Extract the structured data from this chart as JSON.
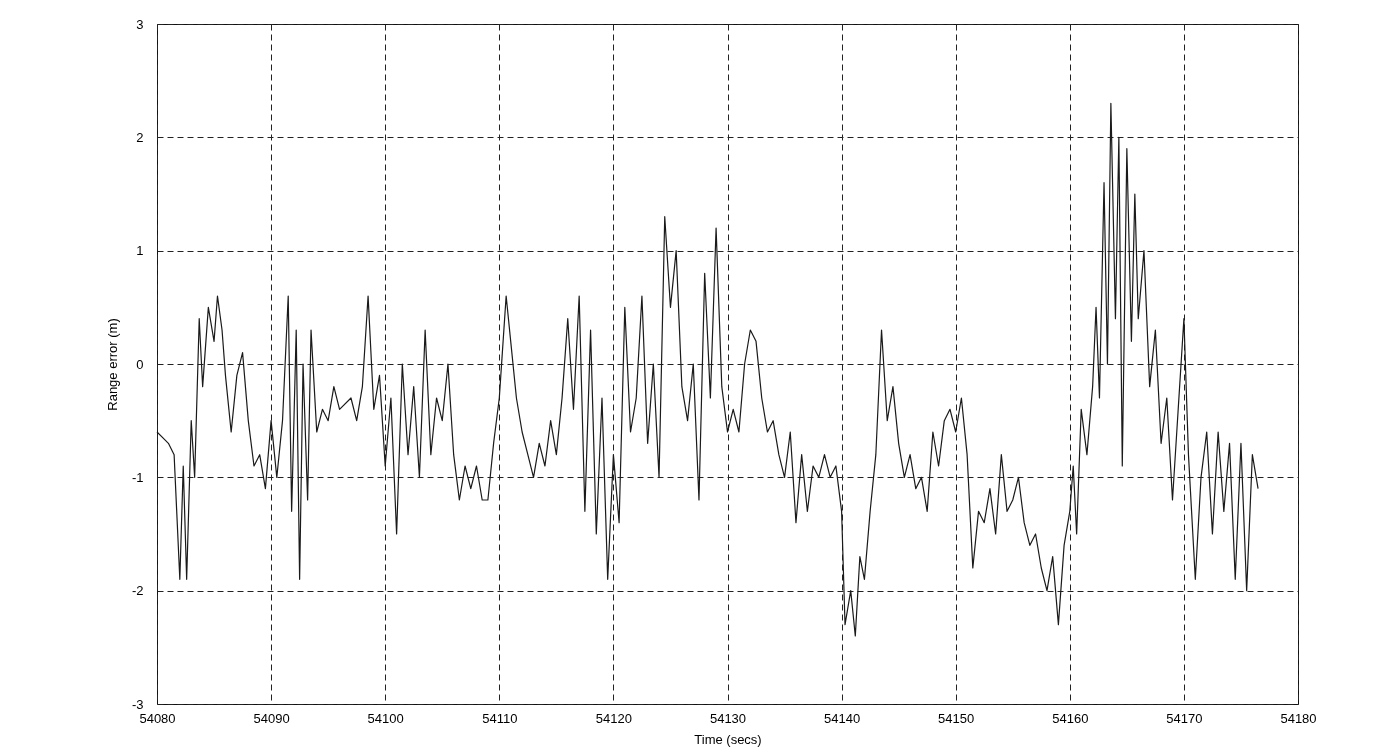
{
  "chart_data": {
    "type": "line",
    "xlabel": "Time (secs)",
    "ylabel": "Range error (m)",
    "xlim": [
      54080,
      54180
    ],
    "xticks": [
      54080,
      54090,
      54100,
      54110,
      54120,
      54130,
      54140,
      54150,
      54160,
      54170,
      54180
    ],
    "ylim": [
      -3,
      3
    ],
    "yticks": [
      -3,
      -2,
      -1,
      0,
      1,
      2,
      3
    ],
    "grid": true,
    "series": [
      {
        "color": "#1a1a1a",
        "x": [
          54080,
          54080.5,
          54081,
          54081.5,
          54082,
          54082.3,
          54082.6,
          54083,
          54083.3,
          54083.7,
          54084,
          54084.5,
          54085,
          54085.3,
          54085.7,
          54086,
          54086.5,
          54087,
          54087.5,
          54088,
          54088.5,
          54089,
          54089.5,
          54090,
          54090.5,
          54091,
          54091.5,
          54091.8,
          54092.2,
          54092.5,
          54092.8,
          54093.2,
          54093.5,
          54094,
          54094.5,
          54095,
          54095.5,
          54096,
          54097,
          54097.5,
          54098,
          54098.5,
          54099,
          54099.5,
          54100,
          54100.5,
          54101,
          54101.5,
          54102,
          54102.5,
          54103,
          54103.5,
          54104,
          54104.5,
          54105,
          54105.5,
          54106,
          54106.5,
          54107,
          54107.5,
          54108,
          54108.5,
          54109,
          54109.5,
          54110,
          54110.6,
          54111,
          54111.5,
          54112,
          54112.5,
          54113,
          54113.5,
          54114,
          54114.5,
          54115,
          54115.5,
          54116,
          54116.5,
          54117,
          54117.5,
          54118,
          54118.5,
          54119,
          54119.5,
          54120,
          54120.5,
          54121,
          54121.5,
          54122,
          54122.5,
          54123,
          54123.5,
          54124,
          54124.5,
          54125,
          54125.5,
          54126,
          54126.5,
          54127,
          54127.5,
          54128,
          54128.5,
          54129,
          54129.5,
          54130,
          54130.5,
          54131,
          54131.5,
          54132,
          54132.5,
          54133,
          54133.5,
          54134,
          54134.5,
          54135,
          54135.5,
          54136,
          54136.5,
          54137,
          54137.5,
          54138,
          54138.5,
          54139,
          54139.5,
          54140,
          54140.3,
          54140.8,
          54141.2,
          54141.6,
          54142,
          54142.5,
          54143,
          54143.5,
          54144,
          54144.5,
          54145,
          54145.5,
          54146,
          54146.5,
          54147,
          54147.5,
          54148,
          54148.5,
          54149,
          54149.5,
          54150,
          54150.5,
          54151,
          54151.5,
          54152,
          54152.5,
          54153,
          54153.5,
          54154,
          54154.5,
          54155,
          54155.5,
          54156,
          54156.5,
          54157,
          54157.5,
          54158,
          54158.5,
          54159,
          54159.5,
          54160,
          54160.3,
          54160.6,
          54161,
          54161.5,
          54162,
          54162.3,
          54162.6,
          54163,
          54163.3,
          54163.6,
          54164,
          54164.3,
          54164.6,
          54165,
          54165.4,
          54165.7,
          54166,
          54166.5,
          54167,
          54167.5,
          54168,
          54168.5,
          54169,
          54169.5,
          54170,
          54170.4,
          54171,
          54171.5,
          54172,
          54172.5,
          54173,
          54173.5,
          54174,
          54174.5,
          54175,
          54175.5,
          54176,
          54176.5
        ],
        "values": [
          -0.6,
          -0.65,
          -0.7,
          -0.8,
          -1.9,
          -0.9,
          -1.9,
          -0.5,
          -1.0,
          0.4,
          -0.2,
          0.5,
          0.2,
          0.6,
          0.3,
          -0.1,
          -0.6,
          -0.1,
          0.1,
          -0.5,
          -0.9,
          -0.8,
          -1.1,
          -0.5,
          -1.0,
          -0.5,
          0.6,
          -1.3,
          0.3,
          -1.9,
          0.0,
          -1.2,
          0.3,
          -0.6,
          -0.4,
          -0.5,
          -0.2,
          -0.4,
          -0.3,
          -0.5,
          -0.2,
          0.6,
          -0.4,
          -0.1,
          -0.9,
          -0.3,
          -1.5,
          0.0,
          -0.8,
          -0.2,
          -1.0,
          0.3,
          -0.8,
          -0.3,
          -0.5,
          0.0,
          -0.8,
          -1.2,
          -0.9,
          -1.1,
          -0.9,
          -1.2,
          -1.2,
          -0.7,
          -0.3,
          0.6,
          0.2,
          -0.3,
          -0.6,
          -0.8,
          -1.0,
          -0.7,
          -0.9,
          -0.5,
          -0.8,
          -0.3,
          0.4,
          -0.4,
          0.6,
          -1.3,
          0.3,
          -1.5,
          -0.3,
          -1.9,
          -0.8,
          -1.4,
          0.5,
          -0.6,
          -0.3,
          0.6,
          -0.7,
          0.0,
          -1.0,
          1.3,
          0.5,
          1.0,
          -0.2,
          -0.5,
          0.0,
          -1.2,
          0.8,
          -0.3,
          1.2,
          -0.2,
          -0.6,
          -0.4,
          -0.6,
          0.0,
          0.3,
          0.2,
          -0.3,
          -0.6,
          -0.5,
          -0.8,
          -1.0,
          -0.6,
          -1.4,
          -0.8,
          -1.3,
          -0.9,
          -1.0,
          -0.8,
          -1.0,
          -0.9,
          -1.3,
          -2.3,
          -2.0,
          -2.4,
          -1.7,
          -1.9,
          -1.3,
          -0.8,
          0.3,
          -0.5,
          -0.2,
          -0.7,
          -1.0,
          -0.8,
          -1.1,
          -1.0,
          -1.3,
          -0.6,
          -0.9,
          -0.5,
          -0.4,
          -0.6,
          -0.3,
          -0.8,
          -1.8,
          -1.3,
          -1.4,
          -1.1,
          -1.5,
          -0.8,
          -1.3,
          -1.2,
          -1.0,
          -1.4,
          -1.6,
          -1.5,
          -1.8,
          -2.0,
          -1.7,
          -2.3,
          -1.6,
          -1.3,
          -0.9,
          -1.5,
          -0.4,
          -0.8,
          -0.2,
          0.5,
          -0.3,
          1.6,
          0.0,
          2.3,
          0.4,
          2.0,
          -0.9,
          1.9,
          0.2,
          1.5,
          0.4,
          1.0,
          -0.2,
          0.3,
          -0.7,
          -0.3,
          -1.2,
          -0.4,
          0.4,
          -0.8,
          -1.9,
          -1.0,
          -0.6,
          -1.5,
          -0.6,
          -1.3,
          -0.7,
          -1.9,
          -0.7,
          -2.0,
          -0.8,
          -1.1
        ]
      }
    ]
  }
}
